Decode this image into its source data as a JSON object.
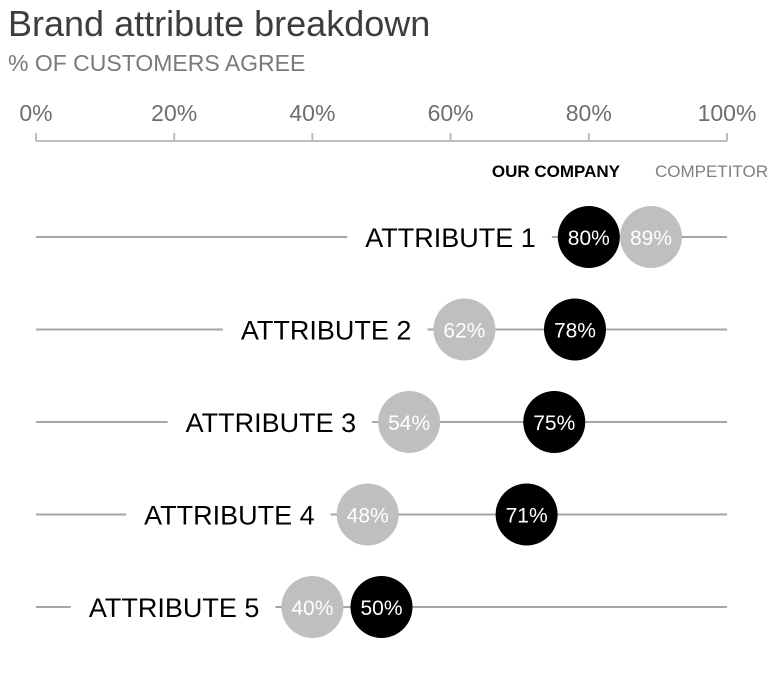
{
  "chart_data": {
    "type": "dot",
    "title": "Brand attribute breakdown",
    "subtitle": "% OF CUSTOMERS AGREE",
    "xlim": [
      0,
      100
    ],
    "x_ticks": [
      0,
      20,
      40,
      60,
      80,
      100
    ],
    "x_tick_labels": [
      "0%",
      "20%",
      "40%",
      "60%",
      "80%",
      "100%"
    ],
    "legend_position": "top-right",
    "categories": [
      "ATTRIBUTE 1",
      "ATTRIBUTE 2",
      "ATTRIBUTE 3",
      "ATTRIBUTE 4",
      "ATTRIBUTE 5"
    ],
    "series": [
      {
        "name": "OUR COMPANY",
        "color": "#000000",
        "values": [
          80,
          78,
          75,
          71,
          50
        ],
        "labels": [
          "80%",
          "78%",
          "75%",
          "71%",
          "50%"
        ]
      },
      {
        "name": "COMPETITOR",
        "color": "#bfbfbf",
        "values": [
          89,
          62,
          54,
          48,
          40
        ],
        "labels": [
          "89%",
          "62%",
          "54%",
          "48%",
          "40%"
        ]
      }
    ],
    "colors": {
      "our_company": "#000000",
      "competitor": "#bfbfbf",
      "axis": "#bdbdbd",
      "row_line": "#a6a6a6",
      "title": "#3d3d3d",
      "subtitle": "#7a7a7a"
    }
  }
}
